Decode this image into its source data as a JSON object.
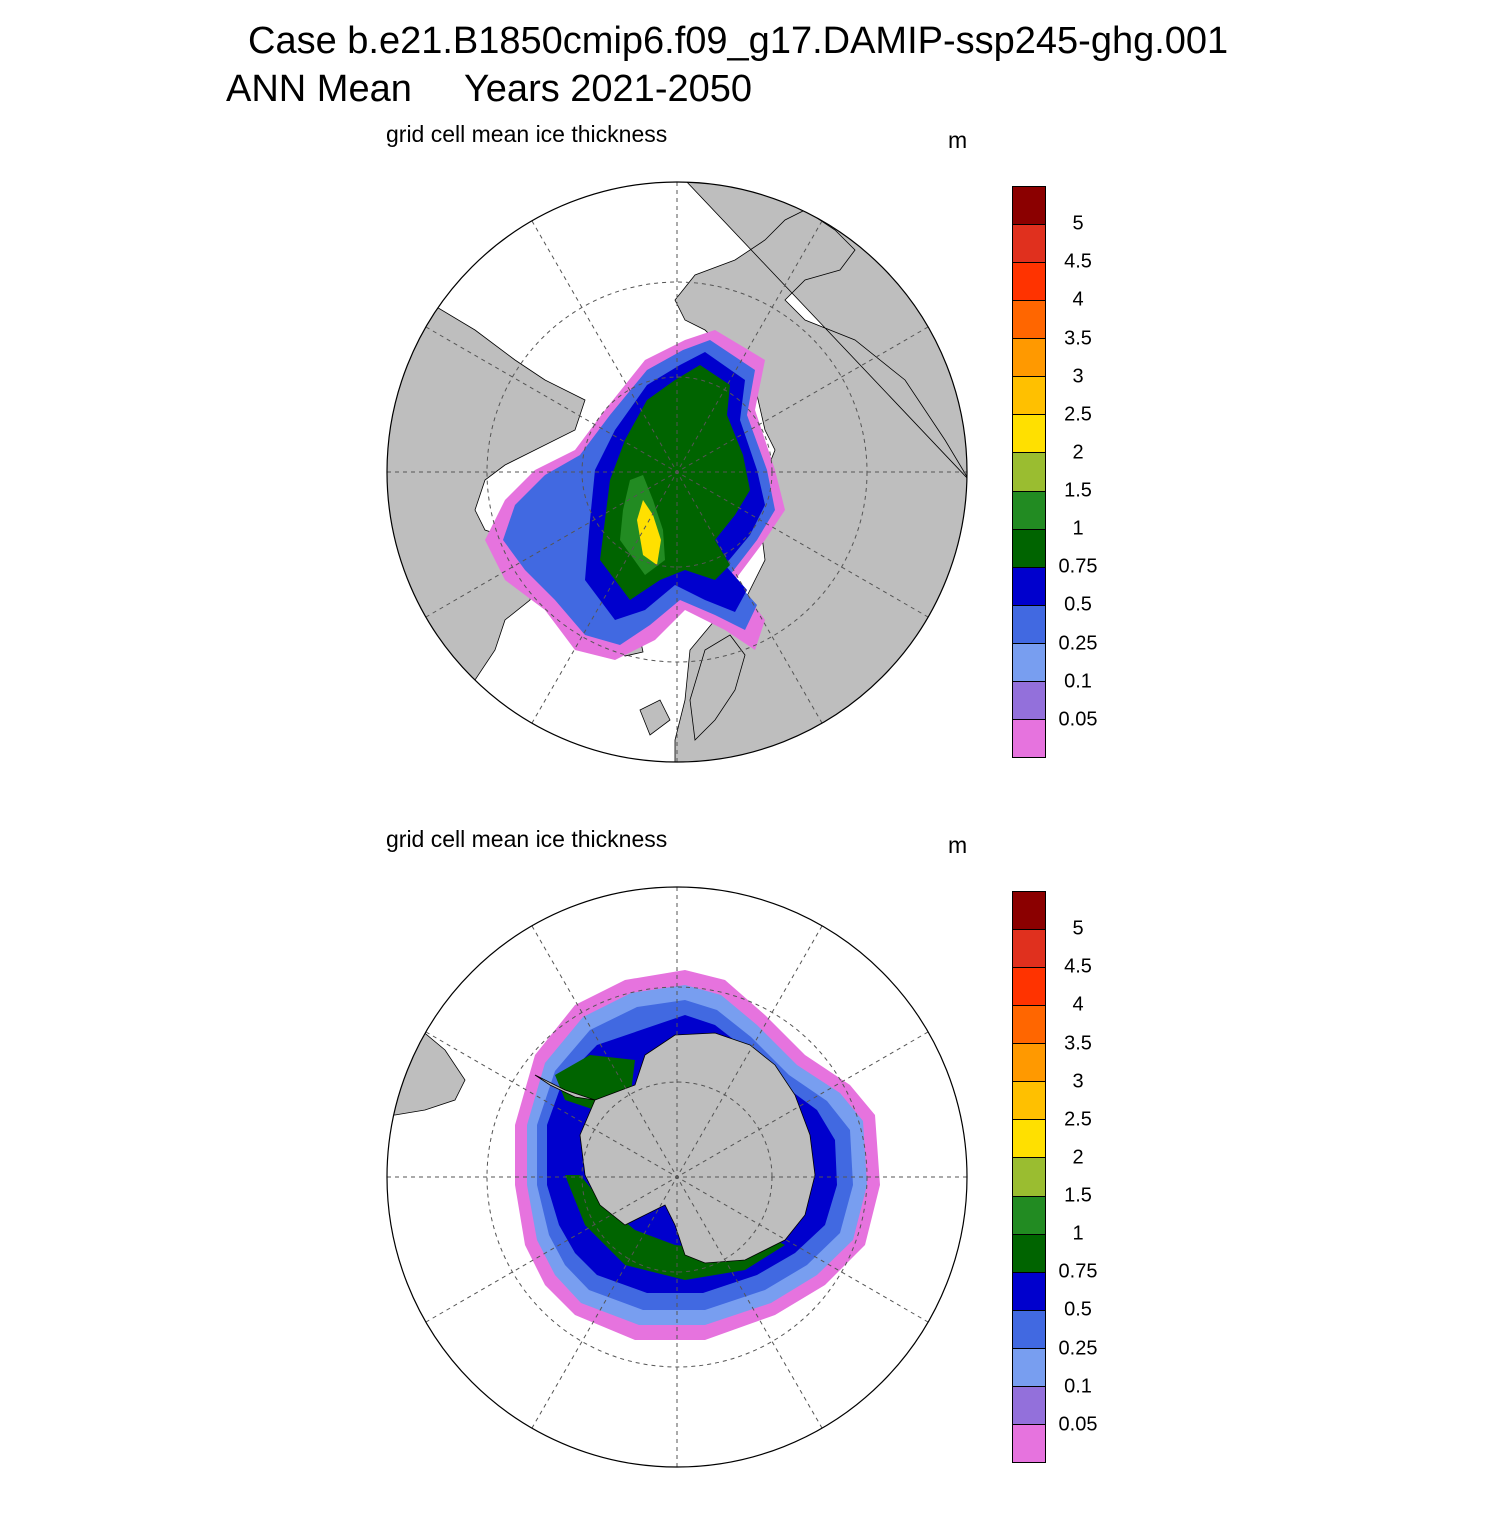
{
  "header": {
    "title_line1": "Case b.e21.B1850cmip6.f09_g17.DAMIP-ssp245-ghg.001",
    "title_line2": "ANN Mean     Years 2021-2050"
  },
  "panels": [
    {
      "id": "north",
      "title": "grid cell mean ice thickness",
      "unit": "m",
      "hemisphere": "Arctic"
    },
    {
      "id": "south",
      "title": "grid cell mean ice thickness",
      "unit": "m",
      "hemisphere": "Antarctic"
    }
  ],
  "colorbar": {
    "levels": [
      "5",
      "4.5",
      "4",
      "3.5",
      "3",
      "2.5",
      "2",
      "1.5",
      "1",
      "0.75",
      "0.5",
      "0.25",
      "0.1",
      "0.05"
    ],
    "colors": [
      "#8b0000",
      "#e0301e",
      "#ff3300",
      "#ff6600",
      "#ff9900",
      "#ffc000",
      "#ffe000",
      "#9abd30",
      "#228b22",
      "#006400",
      "#0000cd",
      "#4169e1",
      "#789ef0",
      "#9370db",
      "#e673de"
    ]
  },
  "map_colors": {
    "land": "#bebebe",
    "ocean": "#ffffff",
    "grid": "#555555"
  }
}
